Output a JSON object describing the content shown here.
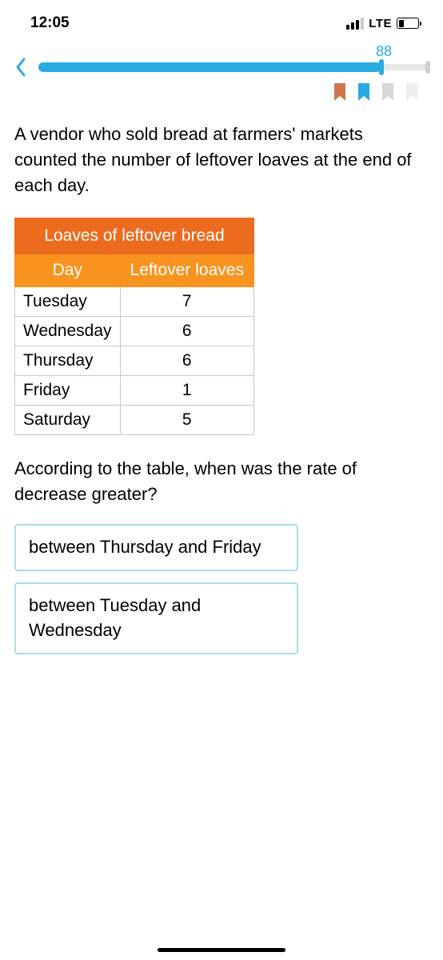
{
  "status": {
    "time": "12:05",
    "network": "LTE"
  },
  "progress": {
    "value": "88",
    "percent": 88
  },
  "bookmarks": {
    "colors": [
      "#d1764a",
      "#29abe2",
      "#d8d8d8",
      "#eeeeee"
    ]
  },
  "problem": {
    "text": "A vendor who sold bread at farmers' markets counted the number of leftover loaves at the end of each day."
  },
  "table": {
    "title": "Loaves of leftover bread",
    "title_bg": "#ed6b1e",
    "header_bg": "#f7931e",
    "columns": [
      "Day",
      "Leftover loaves"
    ],
    "rows": [
      [
        "Tuesday",
        "7"
      ],
      [
        "Wednesday",
        "6"
      ],
      [
        "Thursday",
        "6"
      ],
      [
        "Friday",
        "1"
      ],
      [
        "Saturday",
        "5"
      ]
    ]
  },
  "question": {
    "text": "According to the table, when was the rate of decrease greater?"
  },
  "options": [
    {
      "label": "between Thursday and Friday"
    },
    {
      "label": "between Tuesday and Wednesday"
    }
  ],
  "colors": {
    "accent": "#29abe2",
    "option_border": "#a8dff0"
  }
}
